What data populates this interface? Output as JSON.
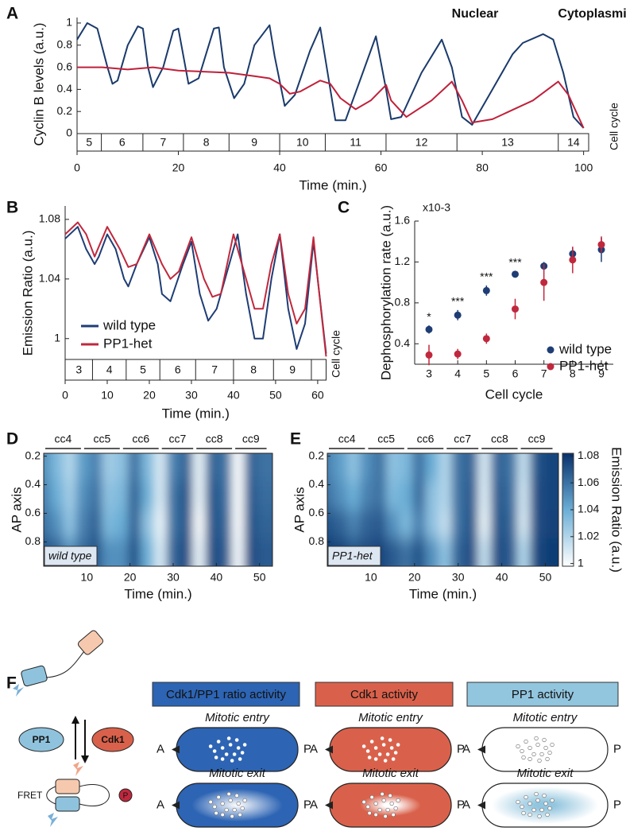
{
  "chart_data": [
    {
      "type": "line",
      "panel": "A",
      "xlabel": "Time (min.)",
      "ylabel": "Cyclin B levels (a.u.)",
      "strip_label": "Cell cycle",
      "xlim": [
        0,
        101
      ],
      "ylim": [
        0,
        1.05
      ],
      "xticks": [
        0,
        20,
        40,
        60,
        80,
        100
      ],
      "yticks": [
        0,
        0.2,
        0.4,
        0.6,
        0.8,
        1
      ],
      "legend": "upper right",
      "cycle_labels": [
        "5",
        "6",
        "7",
        "8",
        "9",
        "10",
        "11",
        "12",
        "13",
        "14"
      ],
      "cycle_boundaries": [
        0,
        4.8,
        13,
        21,
        30,
        40,
        49,
        61,
        75,
        95
      ],
      "series": [
        {
          "name": "Nuclear",
          "color": "#1a3a6b",
          "x": [
            0,
            2,
            4,
            6,
            7,
            8,
            10,
            12,
            13,
            14,
            15,
            17,
            19,
            20,
            21,
            22,
            24,
            27,
            28,
            29,
            31,
            33,
            35,
            38,
            39,
            41,
            43,
            46,
            48,
            50,
            51,
            53,
            56,
            59,
            61,
            62,
            64,
            68,
            72,
            74,
            76,
            78,
            82,
            86,
            88,
            92,
            94,
            96,
            98,
            100
          ],
          "values": [
            0.85,
            1.0,
            0.95,
            0.6,
            0.45,
            0.48,
            0.8,
            0.97,
            0.95,
            0.6,
            0.42,
            0.6,
            0.93,
            0.95,
            0.7,
            0.45,
            0.5,
            0.95,
            0.96,
            0.6,
            0.32,
            0.45,
            0.8,
            0.98,
            0.7,
            0.25,
            0.35,
            0.75,
            0.96,
            0.4,
            0.12,
            0.12,
            0.5,
            0.88,
            0.4,
            0.13,
            0.15,
            0.55,
            0.85,
            0.6,
            0.15,
            0.08,
            0.4,
            0.72,
            0.82,
            0.9,
            0.85,
            0.55,
            0.15,
            0.05
          ]
        },
        {
          "name": "Cytoplasmic",
          "color": "#c0203a",
          "x": [
            0,
            5,
            10,
            15,
            20,
            25,
            30,
            35,
            38,
            40,
            42,
            44,
            48,
            50,
            52,
            55,
            58,
            61,
            62,
            65,
            70,
            74,
            76,
            78,
            82,
            90,
            95,
            97,
            100
          ],
          "values": [
            0.6,
            0.6,
            0.58,
            0.6,
            0.57,
            0.56,
            0.55,
            0.52,
            0.5,
            0.45,
            0.36,
            0.38,
            0.48,
            0.45,
            0.32,
            0.22,
            0.3,
            0.44,
            0.3,
            0.15,
            0.3,
            0.47,
            0.3,
            0.1,
            0.13,
            0.3,
            0.47,
            0.35,
            0.05
          ]
        }
      ]
    },
    {
      "type": "line",
      "panel": "B",
      "xlabel": "Time (min.)",
      "ylabel": "Emission Ratio (a.u.)",
      "strip_label": "Cell cycle",
      "xlim": [
        0,
        62
      ],
      "ylim": [
        0.986,
        1.089
      ],
      "xticks": [
        0,
        10,
        20,
        30,
        40,
        50,
        60
      ],
      "yticks": [
        1,
        1.04,
        1.08
      ],
      "legend": "lower left",
      "cycle_labels": [
        "3",
        "4",
        "5",
        "6",
        "7",
        "8",
        "9"
      ],
      "cycle_boundaries": [
        0,
        6.5,
        14.5,
        22.5,
        31,
        40,
        49.5,
        58.5
      ],
      "series": [
        {
          "name": "wild type",
          "color": "#1f3d75",
          "x": [
            0,
            3,
            5,
            7,
            8,
            10,
            12,
            14,
            15,
            17,
            20,
            22,
            23,
            25,
            28,
            30,
            32,
            34,
            36,
            39,
            41,
            43,
            45,
            47,
            49,
            51,
            53,
            55,
            57,
            59,
            60,
            62
          ],
          "values": [
            1.067,
            1.075,
            1.06,
            1.05,
            1.055,
            1.07,
            1.06,
            1.04,
            1.035,
            1.05,
            1.068,
            1.05,
            1.03,
            1.025,
            1.05,
            1.065,
            1.03,
            1.012,
            1.02,
            1.05,
            1.07,
            1.03,
            1.0,
            1.0,
            1.04,
            1.07,
            1.02,
            0.993,
            1.01,
            1.065,
            1.04,
            0.99
          ]
        },
        {
          "name": "PP1-het",
          "color": "#c0283d",
          "x": [
            0,
            3,
            5,
            7,
            10,
            13,
            15,
            17,
            20,
            23,
            25,
            27,
            30,
            33,
            35,
            37,
            40,
            43,
            45,
            47,
            49,
            51,
            53,
            55,
            57,
            59,
            60,
            62
          ],
          "values": [
            1.07,
            1.078,
            1.07,
            1.055,
            1.075,
            1.06,
            1.048,
            1.05,
            1.07,
            1.05,
            1.04,
            1.045,
            1.068,
            1.04,
            1.028,
            1.03,
            1.07,
            1.04,
            1.02,
            1.02,
            1.05,
            1.07,
            1.03,
            1.01,
            1.02,
            1.068,
            1.04,
            0.988
          ]
        }
      ]
    },
    {
      "type": "errorbar",
      "panel": "C",
      "xlabel": "Cell cycle",
      "ylabel": "Dephosphorylation rate (a.u.)",
      "exponent": "x10-3",
      "categories": [
        "3",
        "4",
        "5",
        "6",
        "7",
        "8",
        "9"
      ],
      "ylim": [
        0.2,
        1.6
      ],
      "yticks": [
        0.4,
        0.8,
        1.2,
        1.6
      ],
      "legend": "lower right",
      "significance": [
        "*",
        "***",
        "***",
        "***",
        null,
        null,
        null
      ],
      "series": [
        {
          "name": "wild type",
          "color": "#1f3d75",
          "values": [
            0.54,
            0.68,
            0.92,
            1.08,
            1.16,
            1.28,
            1.32
          ],
          "errors": [
            0.04,
            0.05,
            0.05,
            0.03,
            0.04,
            0.06,
            0.12
          ]
        },
        {
          "name": "PP1-het",
          "color": "#c0283d",
          "values": [
            0.29,
            0.3,
            0.45,
            0.74,
            1.0,
            1.22,
            1.37
          ],
          "errors": [
            0.1,
            0.05,
            0.05,
            0.1,
            0.18,
            0.13,
            0.08
          ]
        }
      ]
    },
    {
      "type": "heatmap",
      "panel": "D",
      "xlabel": "Time (min.)",
      "ylabel": "AP axis",
      "inset": "wild type",
      "xlim": [
        0,
        53
      ],
      "ylim": [
        0.18,
        0.97
      ],
      "xticks": [
        10,
        20,
        30,
        40,
        50
      ],
      "yticks": [
        0.2,
        0.4,
        0.6,
        0.8
      ],
      "cycle_labels": [
        "cc4",
        "cc5",
        "cc6",
        "cc7",
        "cc8",
        "cc9"
      ],
      "cycle_boundaries": [
        0,
        9,
        18,
        27,
        35,
        44,
        52
      ],
      "colormap": [
        "#ffffff",
        "#6baed6",
        "#08306b"
      ],
      "clim": [
        0.998,
        1.082
      ],
      "x": [
        0,
        3,
        6,
        9,
        12,
        15,
        18,
        21,
        24,
        27,
        30,
        33,
        36,
        39,
        42,
        45,
        48,
        51
      ],
      "y": [
        0.28,
        0.48,
        0.68,
        0.88
      ],
      "z": [
        [
          1.05,
          1.035,
          1.02,
          1.045,
          1.055,
          1.025,
          1.03,
          1.06,
          1.035,
          1.01,
          1.055,
          1.065,
          1.005,
          1.065,
          1.06,
          1.0,
          1.065,
          1.06
        ],
        [
          1.055,
          1.04,
          1.025,
          1.05,
          1.06,
          1.03,
          1.035,
          1.065,
          1.04,
          1.01,
          1.06,
          1.07,
          1.005,
          1.07,
          1.062,
          1.0,
          1.068,
          1.062
        ],
        [
          1.06,
          1.05,
          1.03,
          1.055,
          1.065,
          1.035,
          1.04,
          1.065,
          1.03,
          1.005,
          1.06,
          1.07,
          1.0,
          1.07,
          1.065,
          1.0,
          1.07,
          1.065
        ],
        [
          1.07,
          1.065,
          1.05,
          1.062,
          1.07,
          1.05,
          1.05,
          1.07,
          1.04,
          1.01,
          1.065,
          1.072,
          1.005,
          1.072,
          1.068,
          1.002,
          1.072,
          1.068
        ]
      ]
    },
    {
      "type": "heatmap",
      "panel": "E",
      "xlabel": "Time (min.)",
      "ylabel": "AP axis",
      "inset": "PP1-het",
      "xlim": [
        0,
        53
      ],
      "ylim": [
        0.18,
        0.97
      ],
      "xticks": [
        10,
        20,
        30,
        40,
        50
      ],
      "yticks": [
        0.2,
        0.4,
        0.6,
        0.8
      ],
      "cycle_labels": [
        "cc4",
        "cc5",
        "cc6",
        "cc7",
        "cc8",
        "cc9"
      ],
      "cycle_boundaries": [
        0,
        9,
        18,
        27,
        35,
        44,
        52
      ],
      "colormap": [
        "#ffffff",
        "#6baed6",
        "#08306b"
      ],
      "clim": [
        0.998,
        1.082
      ],
      "colorbar_label": "Emission Ratio (a.u.)",
      "colorbar_ticks": [
        1,
        1.02,
        1.04,
        1.06,
        1.08
      ],
      "x": [
        0,
        3,
        6,
        9,
        12,
        15,
        18,
        21,
        24,
        27,
        30,
        33,
        36,
        39,
        42,
        45,
        48,
        51
      ],
      "y": [
        0.28,
        0.48,
        0.68,
        0.88
      ],
      "z": [
        [
          1.055,
          1.045,
          1.03,
          1.05,
          1.06,
          1.03,
          1.035,
          1.06,
          1.04,
          1.02,
          1.06,
          1.065,
          1.01,
          1.065,
          1.06,
          1.015,
          1.07,
          1.075
        ],
        [
          1.06,
          1.05,
          1.04,
          1.055,
          1.06,
          1.035,
          1.04,
          1.062,
          1.03,
          1.02,
          1.06,
          1.068,
          1.008,
          1.068,
          1.062,
          1.012,
          1.072,
          1.075
        ],
        [
          1.07,
          1.065,
          1.055,
          1.065,
          1.068,
          1.05,
          1.035,
          1.055,
          1.03,
          1.015,
          1.06,
          1.07,
          1.005,
          1.07,
          1.065,
          1.01,
          1.072,
          1.076
        ],
        [
          1.078,
          1.075,
          1.07,
          1.072,
          1.075,
          1.068,
          1.06,
          1.07,
          1.05,
          1.03,
          1.065,
          1.072,
          1.015,
          1.072,
          1.068,
          1.02,
          1.074,
          1.078
        ]
      ]
    }
  ],
  "diagram": {
    "panel": "F",
    "sensor": {
      "pp1": "PP1",
      "cdk1": "Cdk1",
      "fret": "FRET",
      "phospho": "P"
    },
    "columns": [
      {
        "title": "Cdk1/PP1 ratio activity",
        "color": "#2d64b3"
      },
      {
        "title": "Cdk1 activity",
        "color": "#d9614b"
      },
      {
        "title": "PP1 activity",
        "color": "#92c5de"
      }
    ],
    "rows": [
      "Mitotic entry",
      "Mitotic exit"
    ],
    "anterior": "A",
    "posterior": "P"
  }
}
